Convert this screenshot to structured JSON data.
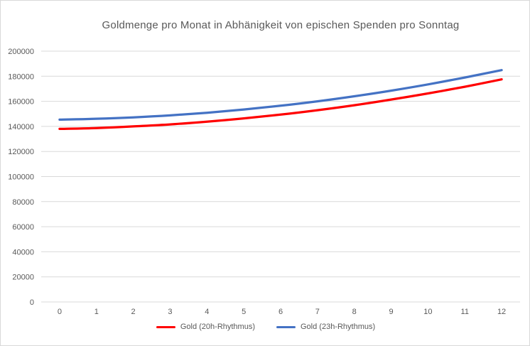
{
  "chart": {
    "colors": {
      "series_red": "#FF0000",
      "series_blue": "#4472C4",
      "grid": "#D9D9D9",
      "text": "#595959",
      "background": "#FFFFFF"
    }
  },
  "chart_data": {
    "type": "line",
    "title": "Goldmenge pro Monat in Abhänigkeit von epischen Spenden pro Sonntag",
    "xlabel": "",
    "ylabel": "",
    "x": [
      0,
      1,
      2,
      3,
      4,
      5,
      6,
      7,
      8,
      9,
      10,
      11,
      12
    ],
    "series": [
      {
        "name": "Gold (20h-Rhythmus)",
        "color": "#FF0000",
        "values": [
          138000,
          138700,
          140000,
          141600,
          143800,
          146400,
          149400,
          152900,
          156900,
          161400,
          166300,
          171600,
          177500
        ]
      },
      {
        "name": "Gold (23h-Rhythmus)",
        "color": "#4472C4",
        "values": [
          145400,
          146100,
          147200,
          148800,
          150900,
          153500,
          156500,
          160000,
          164000,
          168500,
          173500,
          179000,
          184900
        ]
      }
    ],
    "ylim": [
      0,
      200000
    ],
    "ytick_step": 20000,
    "grid": true,
    "legend_position": "bottom"
  }
}
